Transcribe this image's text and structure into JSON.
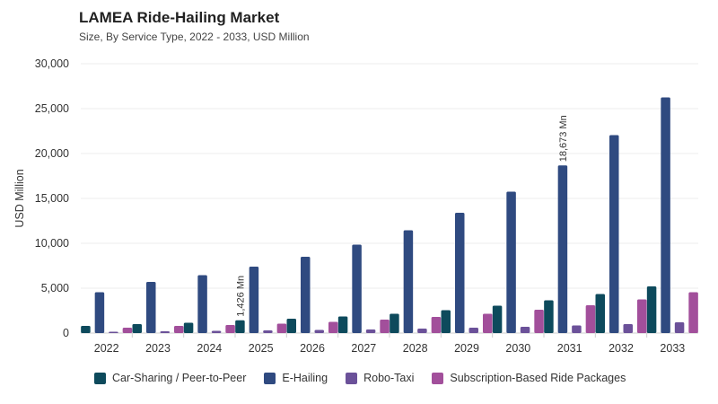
{
  "chart_data": {
    "type": "bar",
    "title": "LAMEA Ride-Hailing Market",
    "subtitle": "Size, By Service Type, 2022 - 2033, USD Million",
    "ylabel": "USD Million",
    "xlabel": "",
    "ylim": [
      0,
      30000
    ],
    "yticks": [
      0,
      5000,
      10000,
      15000,
      20000,
      25000,
      30000
    ],
    "ytick_labels": [
      "0",
      "5,000",
      "10,000",
      "15,000",
      "20,000",
      "25,000",
      "30,000"
    ],
    "categories": [
      "2022",
      "2023",
      "2024",
      "2025",
      "2026",
      "2027",
      "2028",
      "2029",
      "2030",
      "2031",
      "2032",
      "2033"
    ],
    "series": [
      {
        "name": "Car-Sharing / Peer-to-Peer",
        "color": "#0d4a5c",
        "values": [
          800,
          1000,
          1150,
          1426,
          1600,
          1850,
          2150,
          2550,
          3050,
          3650,
          4350,
          5200
        ]
      },
      {
        "name": "E-Hailing",
        "color": "#2f4a80",
        "values": [
          4550,
          5700,
          6450,
          7400,
          8500,
          9850,
          11450,
          13400,
          15750,
          18673,
          22050,
          26250
        ]
      },
      {
        "name": "Robo-Taxi",
        "color": "#6b5199",
        "values": [
          150,
          200,
          250,
          300,
          350,
          400,
          500,
          600,
          700,
          850,
          1000,
          1200
        ]
      },
      {
        "name": "Subscription-Based Ride Packages",
        "color": "#a24f9b",
        "values": [
          600,
          800,
          900,
          1050,
          1250,
          1500,
          1800,
          2150,
          2600,
          3100,
          3750,
          4550
        ]
      }
    ],
    "annotations": [
      {
        "category": "2025",
        "series": 0,
        "text": "1,426 Mn"
      },
      {
        "category": "2031",
        "series": 1,
        "text": "18,673 Mn"
      }
    ],
    "grid": true,
    "legend": "bottom-left"
  }
}
